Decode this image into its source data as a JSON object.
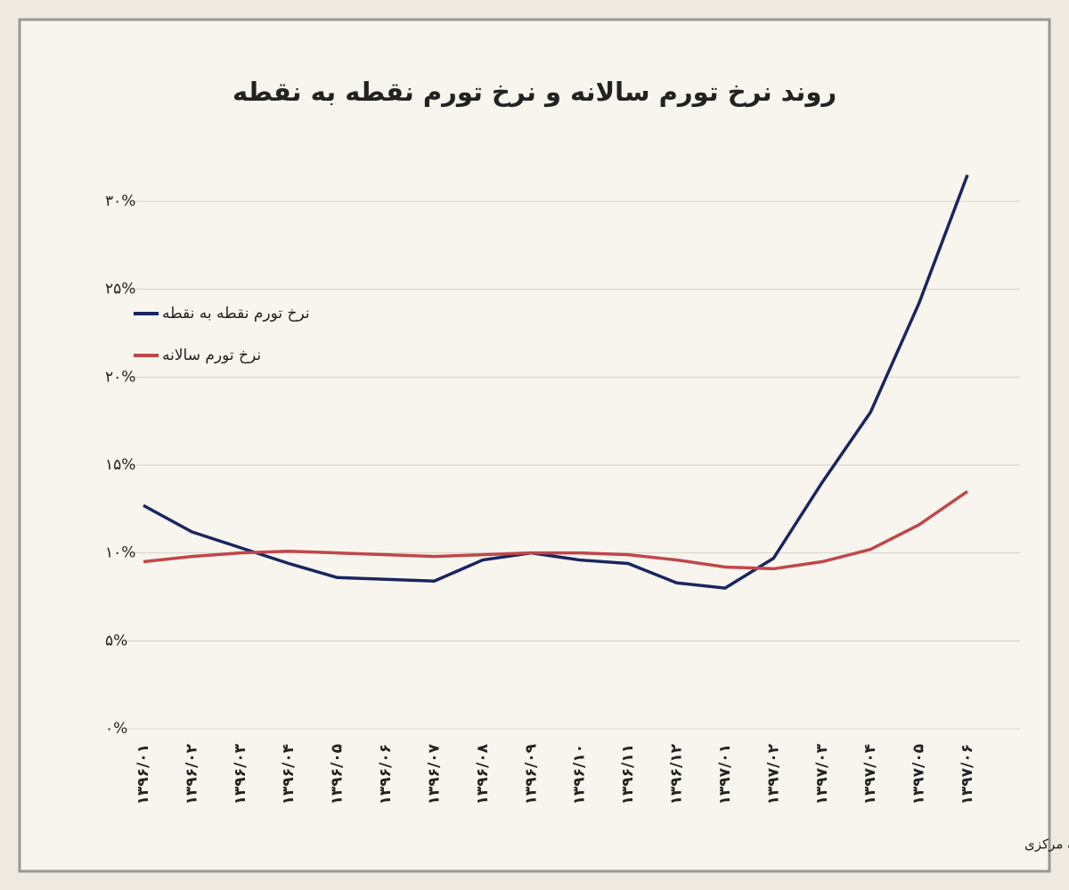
{
  "chart_data": {
    "type": "line",
    "title": "روند نرخ تورم سالانه و نرخ تورم نقطه به نقطه",
    "categories": [
      "۱۳۹۶/۰۱",
      "۱۳۹۶/۰۲",
      "۱۳۹۶/۰۳",
      "۱۳۹۶/۰۴",
      "۱۳۹۶/۰۵",
      "۱۳۹۶/۰۶",
      "۱۳۹۶/۰۷",
      "۱۳۹۶/۰۸",
      "۱۳۹۶/۰۹",
      "۱۳۹۶/۱۰",
      "۱۳۹۶/۱۱",
      "۱۳۹۶/۱۲",
      "۱۳۹۷/۰۱",
      "۱۳۹۷/۰۲",
      "۱۳۹۷/۰۳",
      "۱۳۹۷/۰۴",
      "۱۳۹۷/۰۵",
      "۱۳۹۷/۰۶"
    ],
    "series": [
      {
        "name": "نرخ تورم نقطه به نقطه",
        "color": "#1a2560",
        "values": [
          12.7,
          11.2,
          10.3,
          9.4,
          8.6,
          8.5,
          8.4,
          9.6,
          10.0,
          9.6,
          9.4,
          8.3,
          8.0,
          9.7,
          14.0,
          18.0,
          24.2,
          31.5
        ]
      },
      {
        "name": "نرخ تورم سالانه",
        "color": "#c0474a",
        "values": [
          9.5,
          9.8,
          10.0,
          10.1,
          10.0,
          9.9,
          9.8,
          9.9,
          10.0,
          10.0,
          9.9,
          9.6,
          9.2,
          9.1,
          9.5,
          10.2,
          11.6,
          13.5
        ]
      }
    ],
    "ylim": [
      0,
      30
    ],
    "yticks": [
      {
        "value": 0,
        "label": "۰%"
      },
      {
        "value": 5,
        "label": "۵%"
      },
      {
        "value": 10,
        "label": "۱۰%"
      },
      {
        "value": 15,
        "label": "۱۵%"
      },
      {
        "value": 20,
        "label": "۲۰%"
      },
      {
        "value": 25,
        "label": "۲۵%"
      },
      {
        "value": 30,
        "label": "۳۰%"
      }
    ],
    "grid": true,
    "legend": "top-left",
    "source": "تحلیل و استنتاج: احسان سلطانی بر اساس داده های بانک مرکزی"
  }
}
